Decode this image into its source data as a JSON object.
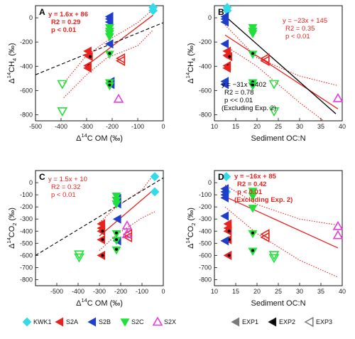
{
  "figure": {
    "legend_sites": [
      {
        "label": "KWK1",
        "marker": "diamond",
        "color": "#33dbe8"
      },
      {
        "label": "S2A",
        "marker": "tri-left",
        "color": "#e8231e"
      },
      {
        "label": "S2B",
        "marker": "tri-left",
        "color": "#1f3ec9"
      },
      {
        "label": "S2C",
        "marker": "tri-down",
        "color": "#22e03a"
      },
      {
        "label": "S2X",
        "marker": "tri-up-open",
        "color": "#e83be0"
      }
    ],
    "legend_experiments": [
      {
        "label": "EXP1",
        "style": "filled",
        "color": "#7a7a7a"
      },
      {
        "label": "EXP2",
        "style": "dot",
        "color": "#111111"
      },
      {
        "label": "EXP3",
        "style": "open",
        "color": "#7a7a7a"
      }
    ]
  },
  "chart_data": [
    {
      "panel": "A",
      "type": "scatter",
      "xlabel_main": "Δ",
      "xlabel_sup": "14",
      "xlabel_rest": "C OM (‰)",
      "ylabel_main": "Δ",
      "ylabel_sup": "14",
      "ylabel_rest": "CH",
      "ylabel_sub": "4",
      "ylabel_unit": " (‰)",
      "xlim": [
        -500,
        0
      ],
      "ylim": [
        -850,
        100
      ],
      "xticks": [
        -500,
        -400,
        -300,
        -200,
        -100,
        0
      ],
      "yticks": [
        0,
        -200,
        -400,
        -600,
        -800
      ],
      "fit_lines": [
        {
          "color": "#e8231e",
          "style": "solid",
          "x": [
            -300,
            -40
          ],
          "y": [
            -394,
            22
          ]
        },
        {
          "color": "#e8231e",
          "style": "dotted",
          "x": [
            -390,
            -300,
            -220,
            -100,
            -40
          ],
          "y": [
            -540,
            -310,
            -190,
            -40,
            70
          ]
        },
        {
          "color": "#e8231e",
          "style": "dotted",
          "x": [
            -390,
            -300,
            -220,
            -100,
            -40
          ],
          "y": [
            -660,
            -470,
            -330,
            -230,
            -100
          ]
        },
        {
          "color": "#000000",
          "style": "dashed",
          "x": [
            -500,
            0
          ],
          "y": [
            -470,
            -40
          ]
        }
      ],
      "annotations": [
        {
          "lines": [
            "y = 1.6x + 86",
            "R2 = 0.29",
            "p < 0.01"
          ],
          "color": "#e8231e",
          "bold": true,
          "pos": "top-left"
        }
      ],
      "points": [
        {
          "x": -40,
          "y": 60,
          "site": "KWK1",
          "exp": "EXP1"
        },
        {
          "x": -40,
          "y": 85,
          "site": "KWK1",
          "exp": "EXP1"
        },
        {
          "x": -295,
          "y": -275,
          "site": "S2A",
          "exp": "EXP1"
        },
        {
          "x": -295,
          "y": -310,
          "site": "S2A",
          "exp": "EXP1"
        },
        {
          "x": -290,
          "y": -320,
          "site": "S2A",
          "exp": "EXP2"
        },
        {
          "x": -295,
          "y": -395,
          "site": "S2A",
          "exp": "EXP2"
        },
        {
          "x": -295,
          "y": -415,
          "site": "S2A",
          "exp": "EXP1"
        },
        {
          "x": -165,
          "y": -335,
          "site": "S2A",
          "exp": "EXP3"
        },
        {
          "x": -165,
          "y": -355,
          "site": "S2A",
          "exp": "EXP3"
        },
        {
          "x": -210,
          "y": 10,
          "site": "S2B",
          "exp": "EXP1"
        },
        {
          "x": -210,
          "y": -10,
          "site": "S2B",
          "exp": "EXP1"
        },
        {
          "x": -210,
          "y": -35,
          "site": "S2B",
          "exp": "EXP1"
        },
        {
          "x": -210,
          "y": -215,
          "site": "S2B",
          "exp": "EXP1"
        },
        {
          "x": -205,
          "y": -525,
          "site": "S2B",
          "exp": "EXP1"
        },
        {
          "x": -205,
          "y": -550,
          "site": "S2B",
          "exp": "EXP1"
        },
        {
          "x": -210,
          "y": -80,
          "site": "S2C",
          "exp": "EXP1"
        },
        {
          "x": -210,
          "y": -110,
          "site": "S2C",
          "exp": "EXP1"
        },
        {
          "x": -210,
          "y": -130,
          "site": "S2C",
          "exp": "EXP1"
        },
        {
          "x": -210,
          "y": -155,
          "site": "S2C",
          "exp": "EXP1"
        },
        {
          "x": -210,
          "y": -300,
          "site": "S2C",
          "exp": "EXP2"
        },
        {
          "x": -210,
          "y": -535,
          "site": "S2C",
          "exp": "EXP2"
        },
        {
          "x": -210,
          "y": -560,
          "site": "S2C",
          "exp": "EXP2"
        },
        {
          "x": -395,
          "y": -545,
          "site": "S2C",
          "exp": "EXP3"
        },
        {
          "x": -395,
          "y": -770,
          "site": "S2C",
          "exp": "EXP3"
        },
        {
          "x": -175,
          "y": -670,
          "site": "S2X",
          "exp": "EXP3"
        }
      ]
    },
    {
      "panel": "B",
      "type": "scatter",
      "xlabel_main": "Sediment OC:N",
      "xlabel_sup": "",
      "xlabel_rest": "",
      "ylabel_main": "Δ",
      "ylabel_sup": "14",
      "ylabel_rest": "CH",
      "ylabel_sub": "4",
      "ylabel_unit": " (‰)",
      "xlim": [
        10,
        40
      ],
      "ylim": [
        -850,
        100
      ],
      "xticks": [
        10,
        15,
        20,
        25,
        30,
        35,
        40
      ],
      "yticks": [
        0,
        -200,
        -400,
        -600,
        -800
      ],
      "fit_lines": [
        {
          "color": "#e8231e",
          "style": "solid",
          "x": [
            12.5,
            39
          ],
          "y": [
            -142,
            -752
          ]
        },
        {
          "color": "#e8231e",
          "style": "dotted",
          "x": [
            12.5,
            20,
            30,
            39
          ],
          "y": [
            -60,
            -330,
            -480,
            -560
          ]
        },
        {
          "color": "#e8231e",
          "style": "dotted",
          "x": [
            12.5,
            20,
            30,
            39
          ],
          "y": [
            -230,
            -400,
            -700,
            -940
          ]
        },
        {
          "color": "#000000",
          "style": "solid",
          "x": [
            12.5,
            38.5
          ],
          "y": [
            14,
            -792
          ]
        }
      ],
      "annotations": [
        {
          "lines": [
            "y = −23x + 145",
            "R2 = 0.35",
            "p < 0.01"
          ],
          "color": "#e8231e",
          "bold": false,
          "pos": "top-right"
        },
        {
          "lines": [
            "y = −31x + 402",
            "R2 = 0.78",
            "p << 0.01",
            "(Excluding Exp. 2)"
          ],
          "color": "#000000",
          "bold": false,
          "pos": "bottom-left"
        }
      ],
      "points": [
        {
          "x": 13,
          "y": 60,
          "site": "KWK1",
          "exp": "EXP1"
        },
        {
          "x": 13,
          "y": 85,
          "site": "KWK1",
          "exp": "EXP1"
        },
        {
          "x": 13,
          "y": -275,
          "site": "S2A",
          "exp": "EXP1"
        },
        {
          "x": 13,
          "y": -310,
          "site": "S2A",
          "exp": "EXP1"
        },
        {
          "x": 13.3,
          "y": -320,
          "site": "S2A",
          "exp": "EXP2"
        },
        {
          "x": 13,
          "y": -395,
          "site": "S2A",
          "exp": "EXP2"
        },
        {
          "x": 13,
          "y": -415,
          "site": "S2A",
          "exp": "EXP1"
        },
        {
          "x": 22,
          "y": -335,
          "site": "S2A",
          "exp": "EXP3"
        },
        {
          "x": 22,
          "y": -355,
          "site": "S2A",
          "exp": "EXP3"
        },
        {
          "x": 12.5,
          "y": 10,
          "site": "S2B",
          "exp": "EXP1"
        },
        {
          "x": 12.5,
          "y": -10,
          "site": "S2B",
          "exp": "EXP1"
        },
        {
          "x": 12.5,
          "y": -35,
          "site": "S2B",
          "exp": "EXP1"
        },
        {
          "x": 12.5,
          "y": -215,
          "site": "S2B",
          "exp": "EXP1"
        },
        {
          "x": 12.5,
          "y": -525,
          "site": "S2B",
          "exp": "EXP1"
        },
        {
          "x": 12.5,
          "y": -550,
          "site": "S2B",
          "exp": "EXP1"
        },
        {
          "x": 19,
          "y": -80,
          "site": "S2C",
          "exp": "EXP1"
        },
        {
          "x": 19,
          "y": -110,
          "site": "S2C",
          "exp": "EXP1"
        },
        {
          "x": 19,
          "y": -130,
          "site": "S2C",
          "exp": "EXP1"
        },
        {
          "x": 19,
          "y": -300,
          "site": "S2C",
          "exp": "EXP2"
        },
        {
          "x": 19,
          "y": -535,
          "site": "S2C",
          "exp": "EXP2"
        },
        {
          "x": 19,
          "y": -560,
          "site": "S2C",
          "exp": "EXP2"
        },
        {
          "x": 24,
          "y": -545,
          "site": "S2C",
          "exp": "EXP3"
        },
        {
          "x": 24,
          "y": -770,
          "site": "S2C",
          "exp": "EXP3"
        },
        {
          "x": 39,
          "y": -665,
          "site": "S2X",
          "exp": "EXP3"
        }
      ]
    },
    {
      "panel": "C",
      "type": "scatter",
      "xlabel_main": "Δ",
      "xlabel_sup": "14",
      "xlabel_rest": "C OM (‰)",
      "ylabel_main": "Δ",
      "ylabel_sup": "14",
      "ylabel_rest": "CO",
      "ylabel_sub": "2",
      "ylabel_unit": " (‰)",
      "xlim": [
        -600,
        0
      ],
      "ylim": [
        -850,
        100
      ],
      "xticks": [
        -500,
        -400,
        -300,
        -200,
        -100,
        0
      ],
      "yticks": [
        0,
        -100,
        -200,
        -300,
        -400,
        -500,
        -600,
        -700,
        -800
      ],
      "fit_lines": [
        {
          "color": "#e8231e",
          "style": "solid",
          "x": [
            -300,
            -40
          ],
          "y": [
            -440,
            -50
          ]
        },
        {
          "color": "#e8231e",
          "style": "dotted",
          "x": [
            -300,
            -220,
            -100,
            -40
          ],
          "y": [
            -330,
            -200,
            -60,
            80
          ]
        },
        {
          "color": "#e8231e",
          "style": "dotted",
          "x": [
            -300,
            -220,
            -100,
            -40
          ],
          "y": [
            -560,
            -430,
            -290,
            -240
          ]
        },
        {
          "color": "#000000",
          "style": "dashed",
          "x": [
            -600,
            0
          ],
          "y": [
            -600,
            40
          ]
        }
      ],
      "annotations": [
        {
          "lines": [
            "y = 1.5x + 10",
            "R2 = 0.32",
            "p < 0.01"
          ],
          "color": "#e8231e",
          "bold": false,
          "pos": "top-left"
        }
      ],
      "points": [
        {
          "x": -40,
          "y": 50,
          "site": "KWK1",
          "exp": "EXP1"
        },
        {
          "x": -40,
          "y": -75,
          "site": "KWK1",
          "exp": "EXP1"
        },
        {
          "x": -290,
          "y": -340,
          "site": "S2A",
          "exp": "EXP1"
        },
        {
          "x": -290,
          "y": -375,
          "site": "S2A",
          "exp": "EXP1"
        },
        {
          "x": -290,
          "y": -400,
          "site": "S2A",
          "exp": "EXP2"
        },
        {
          "x": -290,
          "y": -470,
          "site": "S2A",
          "exp": "EXP2"
        },
        {
          "x": -290,
          "y": -600,
          "site": "S2A",
          "exp": "EXP2"
        },
        {
          "x": -165,
          "y": -425,
          "site": "S2A",
          "exp": "EXP3"
        },
        {
          "x": -165,
          "y": -450,
          "site": "S2A",
          "exp": "EXP3"
        },
        {
          "x": -215,
          "y": -130,
          "site": "S2B",
          "exp": "EXP1"
        },
        {
          "x": -215,
          "y": -155,
          "site": "S2B",
          "exp": "EXP1"
        },
        {
          "x": -215,
          "y": -175,
          "site": "S2B",
          "exp": "EXP1"
        },
        {
          "x": -215,
          "y": -300,
          "site": "S2B",
          "exp": "EXP1"
        },
        {
          "x": -215,
          "y": -480,
          "site": "S2B",
          "exp": "EXP1"
        },
        {
          "x": -220,
          "y": -110,
          "site": "S2C",
          "exp": "EXP1"
        },
        {
          "x": -220,
          "y": -145,
          "site": "S2C",
          "exp": "EXP1"
        },
        {
          "x": -220,
          "y": -175,
          "site": "S2C",
          "exp": "EXP1"
        },
        {
          "x": -220,
          "y": -420,
          "site": "S2C",
          "exp": "EXP2"
        },
        {
          "x": -220,
          "y": -475,
          "site": "S2C",
          "exp": "EXP2"
        },
        {
          "x": -220,
          "y": -555,
          "site": "S2C",
          "exp": "EXP2"
        },
        {
          "x": -395,
          "y": -590,
          "site": "S2C",
          "exp": "EXP3"
        },
        {
          "x": -395,
          "y": -615,
          "site": "S2C",
          "exp": "EXP3"
        },
        {
          "x": -170,
          "y": -355,
          "site": "S2X",
          "exp": "EXP3"
        },
        {
          "x": -170,
          "y": -425,
          "site": "S2X",
          "exp": "EXP3"
        }
      ]
    },
    {
      "panel": "D",
      "type": "scatter",
      "xlabel_main": "Sediment OC:N",
      "xlabel_sup": "",
      "xlabel_rest": "",
      "ylabel_main": "Δ",
      "ylabel_sup": "14",
      "ylabel_rest": "CO",
      "ylabel_sub": "2",
      "ylabel_unit": " (‰)",
      "xlim": [
        10,
        40
      ],
      "ylim": [
        -850,
        100
      ],
      "xticks": [
        10,
        15,
        20,
        25,
        30,
        35,
        40
      ],
      "yticks": [
        0,
        -100,
        -200,
        -300,
        -400,
        -500,
        -600,
        -700,
        -800
      ],
      "fit_lines": [
        {
          "color": "#e8231e",
          "style": "solid",
          "x": [
            12.5,
            39
          ],
          "y": [
            -115,
            -539
          ]
        },
        {
          "color": "#e8231e",
          "style": "dotted",
          "x": [
            12.5,
            20,
            30,
            39
          ],
          "y": [
            -20,
            -180,
            -300,
            -350
          ]
        },
        {
          "color": "#e8231e",
          "style": "dotted",
          "x": [
            12.5,
            20,
            30,
            39
          ],
          "y": [
            -200,
            -420,
            -640,
            -780
          ]
        }
      ],
      "annotations": [
        {
          "lines": [
            "y = −16x + 85",
            "R2 = 0.42",
            "p < 0.01",
            "(Excluding Exp. 2)"
          ],
          "color": "#e8231e",
          "bold": true,
          "pos": "top-right"
        }
      ],
      "points": [
        {
          "x": 12.8,
          "y": 50,
          "site": "KWK1",
          "exp": "EXP1"
        },
        {
          "x": 12.8,
          "y": -75,
          "site": "KWK1",
          "exp": "EXP1"
        },
        {
          "x": 13.2,
          "y": -340,
          "site": "S2A",
          "exp": "EXP1"
        },
        {
          "x": 13.2,
          "y": -375,
          "site": "S2A",
          "exp": "EXP1"
        },
        {
          "x": 13.2,
          "y": -400,
          "site": "S2A",
          "exp": "EXP2"
        },
        {
          "x": 13.2,
          "y": -470,
          "site": "S2A",
          "exp": "EXP2"
        },
        {
          "x": 13.2,
          "y": -600,
          "site": "S2A",
          "exp": "EXP2"
        },
        {
          "x": 22,
          "y": -425,
          "site": "S2A",
          "exp": "EXP3"
        },
        {
          "x": 22,
          "y": -450,
          "site": "S2A",
          "exp": "EXP3"
        },
        {
          "x": 12.5,
          "y": -50,
          "site": "S2B",
          "exp": "EXP1"
        },
        {
          "x": 12.5,
          "y": -75,
          "site": "S2B",
          "exp": "EXP1"
        },
        {
          "x": 12.5,
          "y": -100,
          "site": "S2B",
          "exp": "EXP1"
        },
        {
          "x": 12.5,
          "y": -125,
          "site": "S2B",
          "exp": "EXP1"
        },
        {
          "x": 12.5,
          "y": -275,
          "site": "S2B",
          "exp": "EXP1"
        },
        {
          "x": 12.5,
          "y": -480,
          "site": "S2B",
          "exp": "EXP1"
        },
        {
          "x": 19,
          "y": -70,
          "site": "S2C",
          "exp": "EXP1"
        },
        {
          "x": 19,
          "y": -110,
          "site": "S2C",
          "exp": "EXP1"
        },
        {
          "x": 19,
          "y": -210,
          "site": "S2C",
          "exp": "EXP1"
        },
        {
          "x": 19,
          "y": -420,
          "site": "S2C",
          "exp": "EXP2"
        },
        {
          "x": 19,
          "y": -565,
          "site": "S2C",
          "exp": "EXP2"
        },
        {
          "x": 24,
          "y": -595,
          "site": "S2C",
          "exp": "EXP3"
        },
        {
          "x": 24,
          "y": -620,
          "site": "S2C",
          "exp": "EXP3"
        },
        {
          "x": 39,
          "y": -360,
          "site": "S2X",
          "exp": "EXP3"
        },
        {
          "x": 39,
          "y": -435,
          "site": "S2X",
          "exp": "EXP3"
        }
      ]
    }
  ]
}
